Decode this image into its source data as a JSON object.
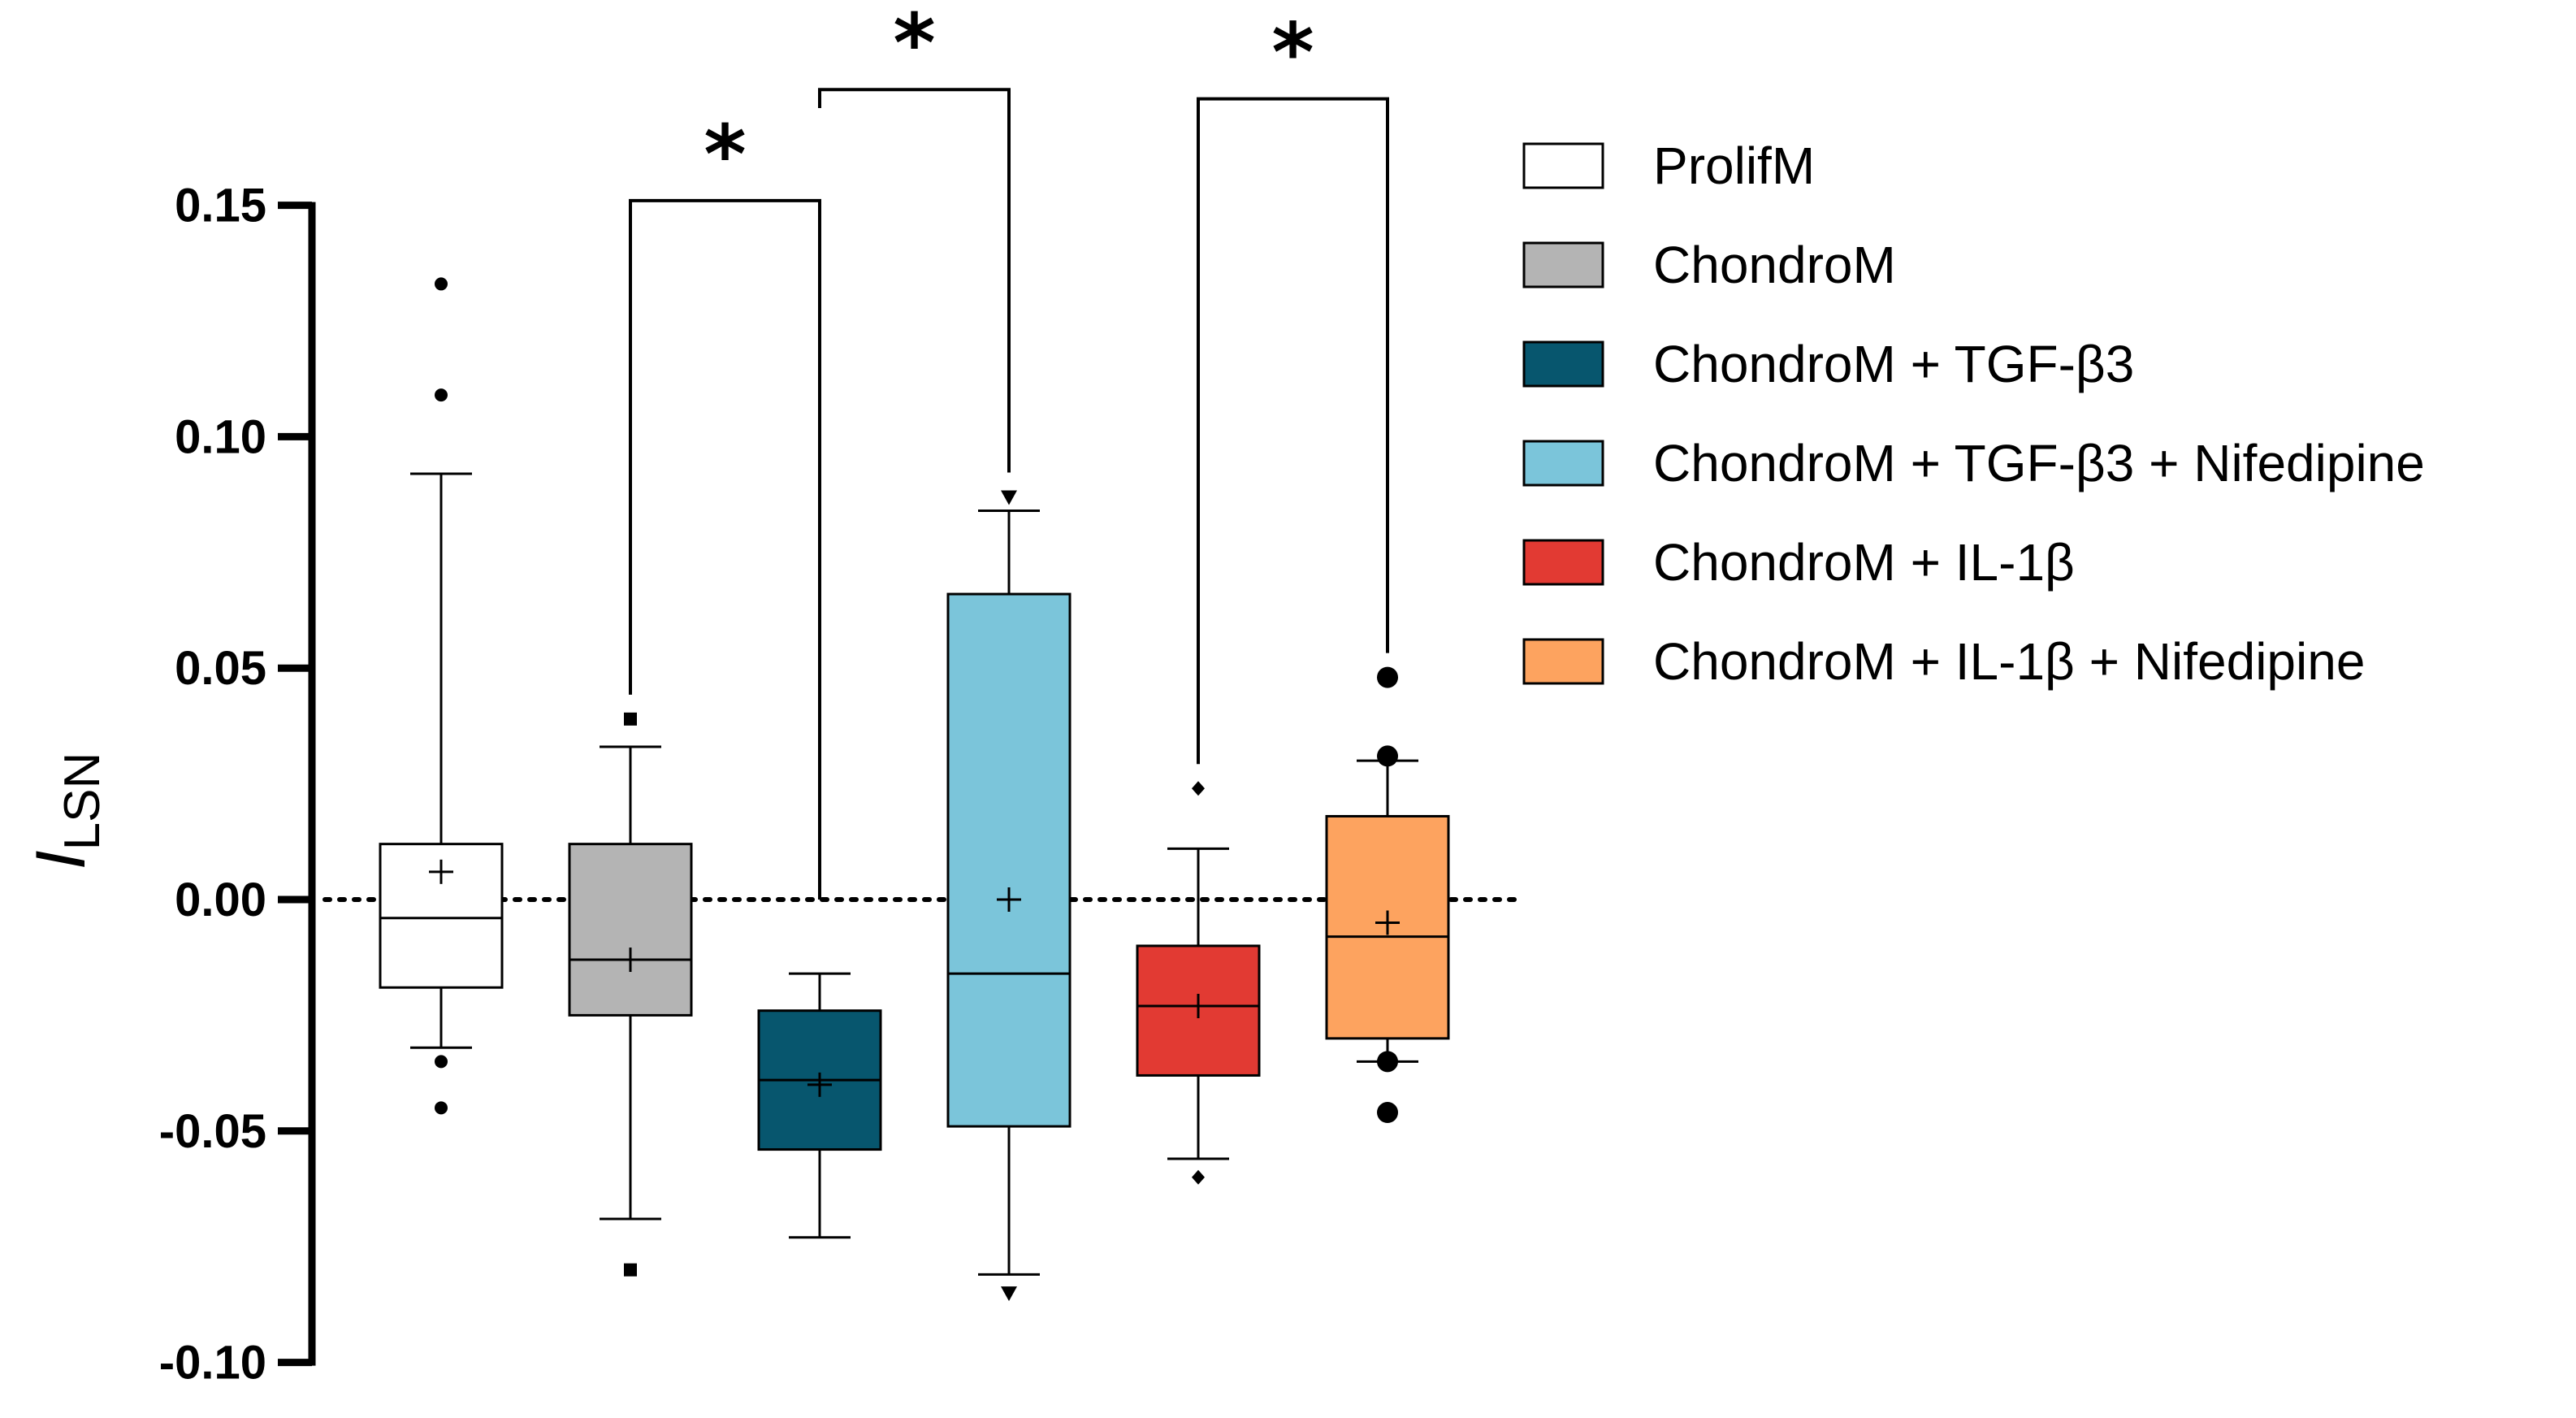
{
  "chart_data": {
    "type": "boxplot",
    "ylabel": {
      "main": "I",
      "subscript": "LSN"
    },
    "ylim": [
      -0.1,
      0.15
    ],
    "yticks": [
      {
        "value": 0.15,
        "label": "0.15"
      },
      {
        "value": 0.1,
        "label": "0.10"
      },
      {
        "value": 0.05,
        "label": "0.05"
      },
      {
        "value": 0.0,
        "label": "0.00"
      },
      {
        "value": -0.05,
        "label": "-0.05"
      },
      {
        "value": -0.1,
        "label": "-0.10"
      }
    ],
    "reference_line": {
      "value": 0.0,
      "style": "dotted"
    },
    "series": [
      {
        "name": "ProlifM",
        "color": "#ffffff",
        "marker": "circle",
        "whisker_low": -0.032,
        "q1": -0.019,
        "median": -0.004,
        "q3": 0.012,
        "whisker_high": 0.092,
        "mean": 0.006,
        "outliers": [
          0.133,
          0.109,
          -0.035,
          -0.045
        ]
      },
      {
        "name": "ChondroM",
        "color": "#b4b4b4",
        "marker": "square",
        "whisker_low": -0.069,
        "q1": -0.025,
        "median": -0.013,
        "q3": 0.012,
        "whisker_high": 0.033,
        "mean": -0.013,
        "outliers": [
          0.039,
          -0.08
        ]
      },
      {
        "name": "ChondroM + TGF-β3",
        "color": "#07566e",
        "marker": "triangle-up",
        "whisker_low": -0.073,
        "q1": -0.054,
        "median": -0.039,
        "q3": -0.024,
        "whisker_high": -0.016,
        "mean": -0.04,
        "outliers": []
      },
      {
        "name": "ChondroM + TGF-β3 + Nifedipine",
        "color": "#7bc5da",
        "marker": "triangle-down",
        "whisker_low": -0.081,
        "q1": -0.049,
        "median": -0.016,
        "q3": 0.066,
        "whisker_high": 0.084,
        "mean": 0.0,
        "outliers": [
          0.087,
          -0.085
        ]
      },
      {
        "name": "ChondroM + IL-1β",
        "color": "#e23a33",
        "marker": "diamond",
        "whisker_low": -0.056,
        "q1": -0.038,
        "median": -0.023,
        "q3": -0.01,
        "whisker_high": 0.011,
        "mean": -0.023,
        "outliers": [
          0.024,
          -0.06
        ]
      },
      {
        "name": "ChondroM + IL-1β + Nifedipine",
        "color": "#fda35f",
        "marker": "big-circle",
        "whisker_low": -0.035,
        "q1": -0.03,
        "median": -0.008,
        "q3": 0.018,
        "whisker_high": 0.03,
        "mean": -0.005,
        "outliers": [
          0.048,
          0.031,
          -0.035,
          -0.046
        ]
      }
    ],
    "significance": [
      {
        "from": 1,
        "to": 2,
        "label": "*"
      },
      {
        "from": 2,
        "to": 3,
        "label": "*"
      },
      {
        "from": 4,
        "to": 5,
        "label": "*"
      }
    ],
    "legend": {
      "position": "top-right"
    }
  }
}
